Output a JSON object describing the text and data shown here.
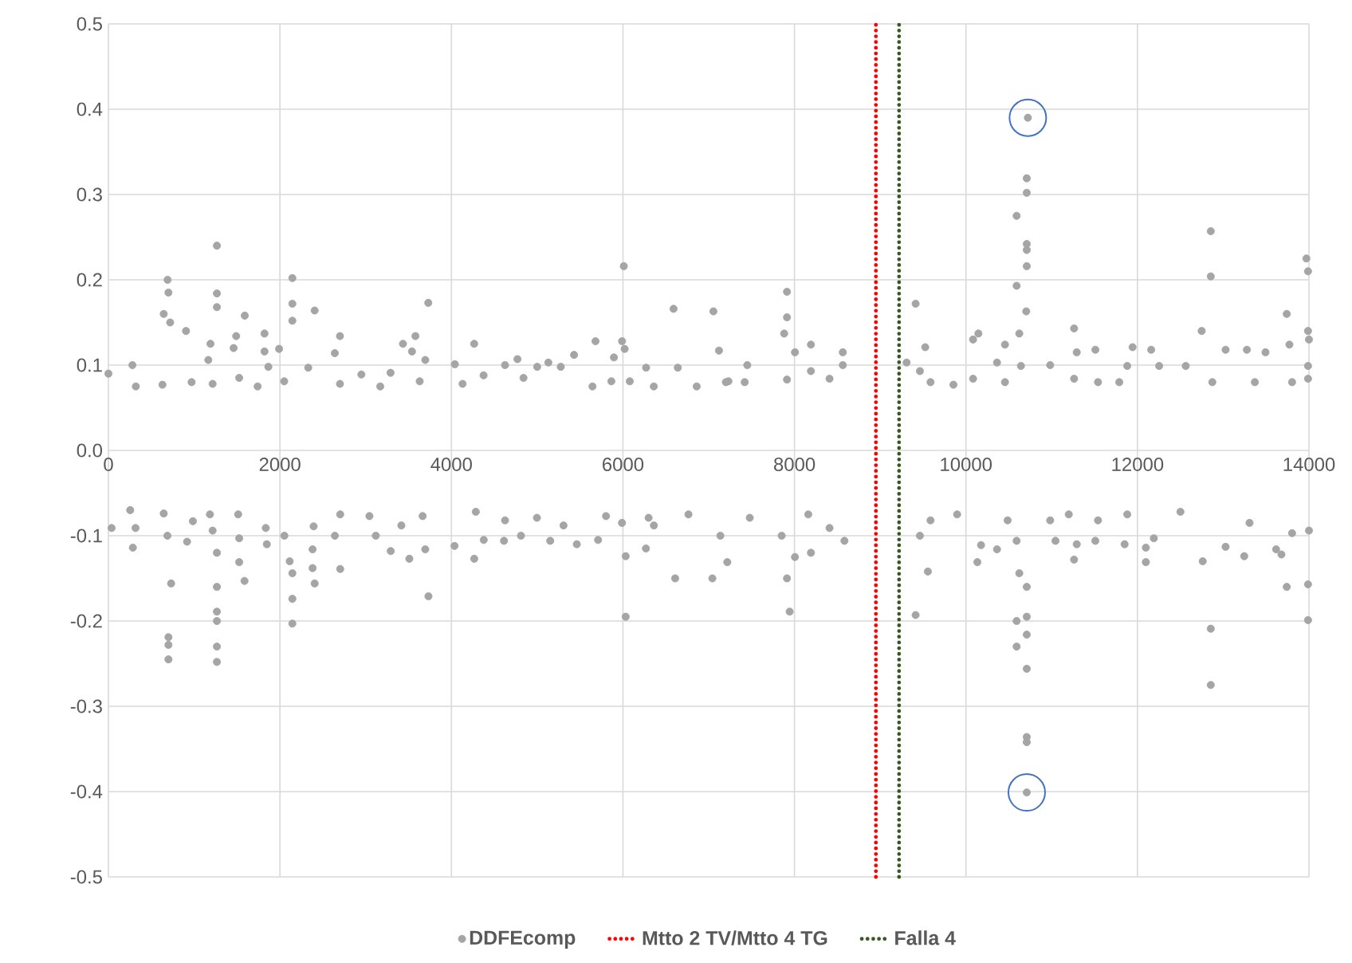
{
  "chart_data": {
    "type": "scatter",
    "xlim": [
      0,
      14000
    ],
    "xticks": [
      0,
      2000,
      4000,
      6000,
      8000,
      10000,
      12000,
      14000
    ],
    "ylim": [
      -0.5,
      0.5
    ],
    "yticks": [
      -0.5,
      -0.4,
      -0.3,
      -0.2,
      -0.1,
      {
        "value": 0,
        "label": "0.0"
      },
      0.1,
      0.2,
      0.3,
      0.4,
      0.5
    ],
    "grid": true,
    "legend": "bottom",
    "series": [
      {
        "name": "DDFEcomp",
        "color": "#a5a5a5",
        "x": [
          0,
          280,
          320,
          630,
          690,
          700,
          645,
          720,
          905,
          970,
          1165,
          1190,
          1265,
          1265,
          1265,
          1215,
          1460,
          1490,
          1590,
          1525,
          1740,
          1820,
          1820,
          1865,
          1990,
          2050,
          2145,
          2145,
          2145,
          2405,
          2330,
          2700,
          2640,
          2700,
          2950,
          3170,
          3290,
          3435,
          3540,
          3580,
          3730,
          3695,
          3630,
          4040,
          4130,
          4265,
          4375,
          4625,
          4770,
          4840,
          5000,
          5130,
          5275,
          5430,
          5645,
          5680,
          5865,
          5895,
          6010,
          5990,
          6020,
          6080,
          6270,
          6360,
          6590,
          6640,
          6860,
          7055,
          7120,
          7230,
          7200,
          7450,
          7420,
          7913,
          7913,
          7880,
          8006,
          7913,
          8192,
          8192,
          8409,
          8564,
          8564,
          9413,
          9308,
          9525,
          9463,
          9587,
          9854,
          10083,
          10145,
          10083,
          10362,
          10455,
          10455,
          10622,
          10591,
          10641,
          10703,
          10709,
          10709,
          10709,
          10591,
          10709,
          10709,
          10722,
          10982,
          11261,
          11292,
          11261,
          11509,
          11540,
          11788,
          11943,
          11881,
          12160,
          12253,
          12563,
          12749,
          12855,
          12855,
          12873,
          13028,
          13276,
          13369,
          13493,
          13741,
          13772,
          13803,
          13970,
          13989,
          13989,
          14000,
          13989,
          13989,
          37,
          254,
          316,
          285,
          645,
          688,
          731,
          700,
          700,
          700,
          917,
          985,
          1184,
          1265,
          1265,
          1265,
          1265,
          1265,
          1265,
          1215,
          1513,
          1525,
          1525,
          1587,
          1835,
          1847,
          2052,
          2114,
          2145,
          2145,
          2145,
          2393,
          2381,
          2381,
          2405,
          2703,
          2703,
          2641,
          3044,
          3118,
          3292,
          3416,
          3509,
          3695,
          3732,
          3664,
          4036,
          4266,
          4284,
          4377,
          4625,
          4613,
          4811,
          4997,
          5152,
          5307,
          5462,
          5710,
          5803,
          5989,
          6032,
          6032,
          6299,
          6268,
          6361,
          6609,
          6764,
          7043,
          7136,
          7217,
          7479,
          7851,
          7913,
          7944,
          8006,
          8161,
          8192,
          8409,
          8583,
          9413,
          9556,
          9463,
          9587,
          9897,
          10133,
          10176,
          10362,
          10486,
          10591,
          10622,
          10709,
          10591,
          10709,
          10709,
          10591,
          10709,
          10709,
          10709,
          10709,
          10982,
          11044,
          11261,
          11292,
          11199,
          11509,
          11540,
          11850,
          12098,
          12098,
          12191,
          11881,
          12501,
          12761,
          12855,
          12855,
          13028,
          13245,
          13307,
          13617,
          13679,
          13741,
          13803,
          13989,
          13989,
          14000
        ],
        "values": [
          0.09,
          0.1,
          0.075,
          0.077,
          0.2,
          0.185,
          0.16,
          0.15,
          0.14,
          0.08,
          0.106,
          0.125,
          0.24,
          0.184,
          0.168,
          0.078,
          0.12,
          0.134,
          0.158,
          0.085,
          0.075,
          0.137,
          0.116,
          0.098,
          0.119,
          0.081,
          0.202,
          0.172,
          0.152,
          0.164,
          0.097,
          0.134,
          0.114,
          0.078,
          0.089,
          0.075,
          0.091,
          0.125,
          0.116,
          0.134,
          0.173,
          0.106,
          0.081,
          0.101,
          0.078,
          0.125,
          0.088,
          0.1,
          0.107,
          0.085,
          0.098,
          0.103,
          0.098,
          0.112,
          0.075,
          0.128,
          0.081,
          0.109,
          0.216,
          0.128,
          0.119,
          0.081,
          0.097,
          0.075,
          0.166,
          0.097,
          0.075,
          0.163,
          0.117,
          0.081,
          0.08,
          0.1,
          0.08,
          0.186,
          0.156,
          0.137,
          0.115,
          0.083,
          0.124,
          0.093,
          0.084,
          0.115,
          0.1,
          0.172,
          0.103,
          0.121,
          0.093,
          0.08,
          0.077,
          0.13,
          0.137,
          0.084,
          0.103,
          0.124,
          0.08,
          0.137,
          0.193,
          0.099,
          0.163,
          0.216,
          0.235,
          0.242,
          0.275,
          0.302,
          0.319,
          0.39,
          0.1,
          0.143,
          0.115,
          0.084,
          0.118,
          0.08,
          0.08,
          0.121,
          0.099,
          0.118,
          0.099,
          0.099,
          0.14,
          0.257,
          0.204,
          0.08,
          0.118,
          0.118,
          0.08,
          0.115,
          0.16,
          0.124,
          0.08,
          0.225,
          0.21,
          0.14,
          0.13,
          0.099,
          0.084,
          -0.091,
          -0.07,
          -0.091,
          -0.114,
          -0.074,
          -0.1,
          -0.156,
          -0.219,
          -0.228,
          -0.245,
          -0.107,
          -0.083,
          -0.075,
          -0.12,
          -0.16,
          -0.189,
          -0.2,
          -0.23,
          -0.248,
          -0.094,
          -0.075,
          -0.103,
          -0.131,
          -0.153,
          -0.091,
          -0.11,
          -0.1,
          -0.13,
          -0.144,
          -0.174,
          -0.203,
          -0.089,
          -0.116,
          -0.138,
          -0.156,
          -0.075,
          -0.139,
          -0.1,
          -0.077,
          -0.1,
          -0.118,
          -0.088,
          -0.127,
          -0.116,
          -0.171,
          -0.077,
          -0.112,
          -0.127,
          -0.072,
          -0.105,
          -0.082,
          -0.106,
          -0.1,
          -0.079,
          -0.106,
          -0.088,
          -0.11,
          -0.105,
          -0.077,
          -0.085,
          -0.124,
          -0.195,
          -0.079,
          -0.115,
          -0.088,
          -0.15,
          -0.075,
          -0.15,
          -0.1,
          -0.131,
          -0.079,
          -0.1,
          -0.15,
          -0.189,
          -0.125,
          -0.075,
          -0.12,
          -0.091,
          -0.106,
          -0.193,
          -0.142,
          -0.1,
          -0.082,
          -0.075,
          -0.131,
          -0.111,
          -0.116,
          -0.082,
          -0.106,
          -0.144,
          -0.16,
          -0.2,
          -0.195,
          -0.216,
          -0.23,
          -0.256,
          -0.336,
          -0.342,
          -0.401,
          -0.082,
          -0.106,
          -0.128,
          -0.11,
          -0.075,
          -0.106,
          -0.082,
          -0.11,
          -0.131,
          -0.114,
          -0.103,
          -0.075,
          -0.072,
          -0.13,
          -0.209,
          -0.275,
          -0.113,
          -0.124,
          -0.085,
          -0.116,
          -0.122,
          -0.16,
          -0.097,
          -0.157,
          -0.199,
          -0.094
        ]
      }
    ],
    "ref_lines": [
      {
        "axis": "x",
        "value": 8950,
        "label": "Mtto 2 TV/Mtto 4 TG",
        "color": "#ff0000",
        "line_style": "dotted"
      },
      {
        "axis": "x",
        "value": 9220,
        "label": "Falla 4",
        "color": "#385723",
        "line_style": "dotted"
      }
    ]
  }
}
